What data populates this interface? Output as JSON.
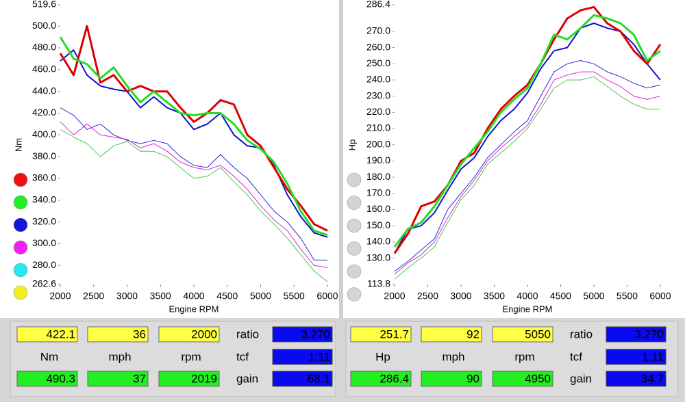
{
  "chart_data": [
    {
      "type": "line",
      "ylabel": "Nm",
      "xlabel": "Engine RPM",
      "xlim": [
        2000,
        6000
      ],
      "xticks": [
        2000,
        2500,
        3000,
        3500,
        4000,
        4500,
        5000,
        5500,
        6000
      ],
      "ylim": [
        262.6,
        519.6
      ],
      "yticks": [
        262.6,
        {
          "value": 280,
          "label": "280.0"
        },
        {
          "value": 300,
          "label": "300.0"
        },
        {
          "value": 320,
          "label": "320.0"
        },
        {
          "value": 340,
          "label": "340.0"
        },
        {
          "value": 360,
          "label": "360.0"
        },
        {
          "value": 380,
          "label": "380.0"
        },
        {
          "value": 400,
          "label": "400.0"
        },
        {
          "value": 420,
          "label": "420.0"
        },
        {
          "value": 440,
          "label": "440.0"
        },
        {
          "value": 460,
          "label": "460.0"
        },
        {
          "value": 480,
          "label": "480.0"
        },
        {
          "value": 500,
          "label": "500.0"
        },
        519.6
      ],
      "legend_dots": [
        "#ee1111",
        "#22ee22",
        "#1515dd",
        "#ee22ee",
        "#22e8f0",
        "#f2ee22"
      ],
      "x": [
        2000,
        2200,
        2400,
        2600,
        2800,
        3000,
        3200,
        3400,
        3600,
        3800,
        4000,
        4200,
        4400,
        4600,
        4800,
        5000,
        5200,
        5400,
        5600,
        5800,
        6000
      ],
      "series": [
        {
          "color": "#dd0000",
          "line_width": 3,
          "values": [
            475,
            455,
            500,
            448,
            455,
            440,
            445,
            440,
            440,
            425,
            412,
            420,
            432,
            428,
            400,
            390,
            370,
            350,
            335,
            318,
            312
          ]
        },
        {
          "color": "#22dd22",
          "line_width": 3,
          "values": [
            490,
            470,
            465,
            452,
            462,
            445,
            430,
            440,
            430,
            420,
            418,
            420,
            420,
            410,
            395,
            387,
            375,
            355,
            330,
            312,
            308
          ]
        },
        {
          "color": "#1010cc",
          "line_width": 2,
          "values": [
            468,
            478,
            455,
            445,
            442,
            440,
            425,
            435,
            425,
            420,
            405,
            410,
            420,
            400,
            390,
            388,
            372,
            345,
            325,
            310,
            306
          ]
        },
        {
          "color": "#2a2ad8",
          "line_width": 1,
          "values": [
            425,
            418,
            405,
            410,
            400,
            395,
            392,
            395,
            392,
            380,
            372,
            370,
            382,
            370,
            360,
            345,
            330,
            320,
            305,
            285,
            285
          ]
        },
        {
          "color": "#dd22dd",
          "line_width": 1,
          "values": [
            412,
            400,
            410,
            400,
            398,
            396,
            388,
            392,
            385,
            375,
            370,
            368,
            372,
            362,
            350,
            335,
            322,
            312,
            295,
            280,
            278
          ]
        },
        {
          "color": "#44cc44",
          "line_width": 1,
          "values": [
            405,
            398,
            392,
            380,
            390,
            394,
            385,
            385,
            380,
            370,
            360,
            362,
            370,
            357,
            345,
            330,
            318,
            305,
            290,
            275,
            265
          ]
        }
      ]
    },
    {
      "type": "line",
      "ylabel": "Hp",
      "xlabel": "Engine RPM",
      "xlim": [
        2000,
        6000
      ],
      "xticks": [
        2000,
        2500,
        3000,
        3500,
        4000,
        4500,
        5000,
        5500,
        6000
      ],
      "ylim": [
        113.8,
        286.4
      ],
      "yticks": [
        113.8,
        {
          "value": 130,
          "label": "130.0"
        },
        {
          "value": 140,
          "label": "140.0"
        },
        {
          "value": 150,
          "label": "150.0"
        },
        {
          "value": 160,
          "label": "160.0"
        },
        {
          "value": 170,
          "label": "170.0"
        },
        {
          "value": 180,
          "label": "180.0"
        },
        {
          "value": 190,
          "label": "190.0"
        },
        {
          "value": 200,
          "label": "200.0"
        },
        {
          "value": 210,
          "label": "210.0"
        },
        {
          "value": 220,
          "label": "220.0"
        },
        {
          "value": 230,
          "label": "230.0"
        },
        {
          "value": 240,
          "label": "240.0"
        },
        {
          "value": 250,
          "label": "250.0"
        },
        {
          "value": 260,
          "label": "260.0"
        },
        {
          "value": 270,
          "label": "270.0"
        },
        286.4
      ],
      "legend_dots": [
        "#d4d4d4",
        "#d4d4d4",
        "#d4d4d4",
        "#d4d4d4",
        "#d4d4d4",
        "#d4d4d4"
      ],
      "x": [
        2000,
        2200,
        2400,
        2600,
        2800,
        3000,
        3200,
        3400,
        3600,
        3800,
        4000,
        4200,
        4400,
        4600,
        4800,
        5000,
        5200,
        5400,
        5600,
        5800,
        6000
      ],
      "series": [
        {
          "color": "#dd0000",
          "line_width": 3,
          "values": [
            133,
            145,
            162,
            165,
            175,
            190,
            195,
            210,
            222,
            230,
            237,
            250,
            265,
            278,
            283,
            285,
            275,
            270,
            258,
            250,
            262
          ]
        },
        {
          "color": "#22dd22",
          "line_width": 3,
          "values": [
            137,
            148,
            152,
            162,
            175,
            188,
            198,
            208,
            220,
            228,
            235,
            250,
            268,
            265,
            272,
            280,
            278,
            275,
            268,
            252,
            258
          ]
        },
        {
          "color": "#1010cc",
          "line_width": 2,
          "values": [
            133,
            148,
            150,
            158,
            172,
            185,
            192,
            205,
            215,
            222,
            232,
            247,
            258,
            260,
            272,
            275,
            272,
            270,
            262,
            250,
            240
          ]
        },
        {
          "color": "#2a2ad8",
          "line_width": 1,
          "values": [
            122,
            128,
            135,
            142,
            160,
            170,
            180,
            192,
            200,
            208,
            215,
            230,
            245,
            250,
            252,
            250,
            245,
            242,
            238,
            235,
            237
          ]
        },
        {
          "color": "#dd22dd",
          "line_width": 1,
          "values": [
            120,
            127,
            132,
            140,
            155,
            168,
            178,
            190,
            198,
            205,
            212,
            225,
            240,
            243,
            245,
            245,
            240,
            236,
            230,
            228,
            230
          ]
        },
        {
          "color": "#44cc44",
          "line_width": 1,
          "values": [
            117,
            124,
            130,
            137,
            152,
            166,
            175,
            188,
            195,
            202,
            210,
            222,
            235,
            240,
            240,
            242,
            236,
            230,
            225,
            222,
            222
          ]
        }
      ]
    }
  ],
  "panels": [
    {
      "readouts": [
        [
          "422.1",
          "36",
          "2000"
        ],
        [
          "Nm",
          "mph",
          "rpm"
        ],
        [
          "490.3",
          "37",
          "2019"
        ]
      ],
      "factors": [
        {
          "label": "ratio",
          "value": "3.270"
        },
        {
          "label": "tcf",
          "value": "1.11"
        },
        {
          "label": "gain",
          "value": "68.1"
        }
      ]
    },
    {
      "readouts": [
        [
          "251.7",
          "92",
          "5050"
        ],
        [
          "Hp",
          "mph",
          "rpm"
        ],
        [
          "286.4",
          "90",
          "4950"
        ]
      ],
      "factors": [
        {
          "label": "ratio",
          "value": "3.270"
        },
        {
          "label": "tcf",
          "value": "1.11"
        },
        {
          "label": "gain",
          "value": "34.7"
        }
      ]
    }
  ]
}
